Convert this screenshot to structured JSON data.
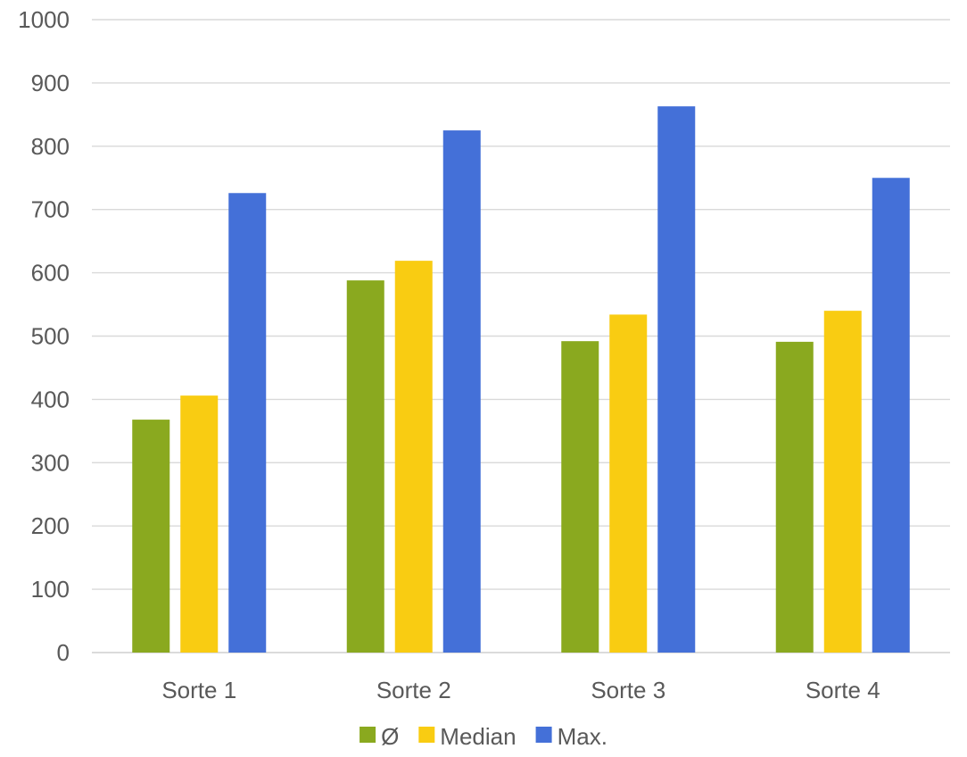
{
  "chart_data": {
    "type": "bar",
    "categories": [
      "Sorte 1",
      "Sorte 2",
      "Sorte 3",
      "Sorte 4"
    ],
    "series": [
      {
        "name": "Ø",
        "color": "#8aa91f",
        "values": [
          368,
          588,
          492,
          491
        ]
      },
      {
        "name": "Median",
        "color": "#f9cc12",
        "values": [
          406,
          619,
          534,
          540
        ]
      },
      {
        "name": "Max.",
        "color": "#4470d8",
        "values": [
          726,
          825,
          863,
          750
        ]
      }
    ],
    "ylim": [
      0,
      1000
    ],
    "yticks": [
      "0",
      "100",
      "200",
      "300",
      "400",
      "500",
      "600",
      "700",
      "800",
      "900",
      "1000"
    ],
    "grid": true,
    "legend_position": "bottom"
  }
}
